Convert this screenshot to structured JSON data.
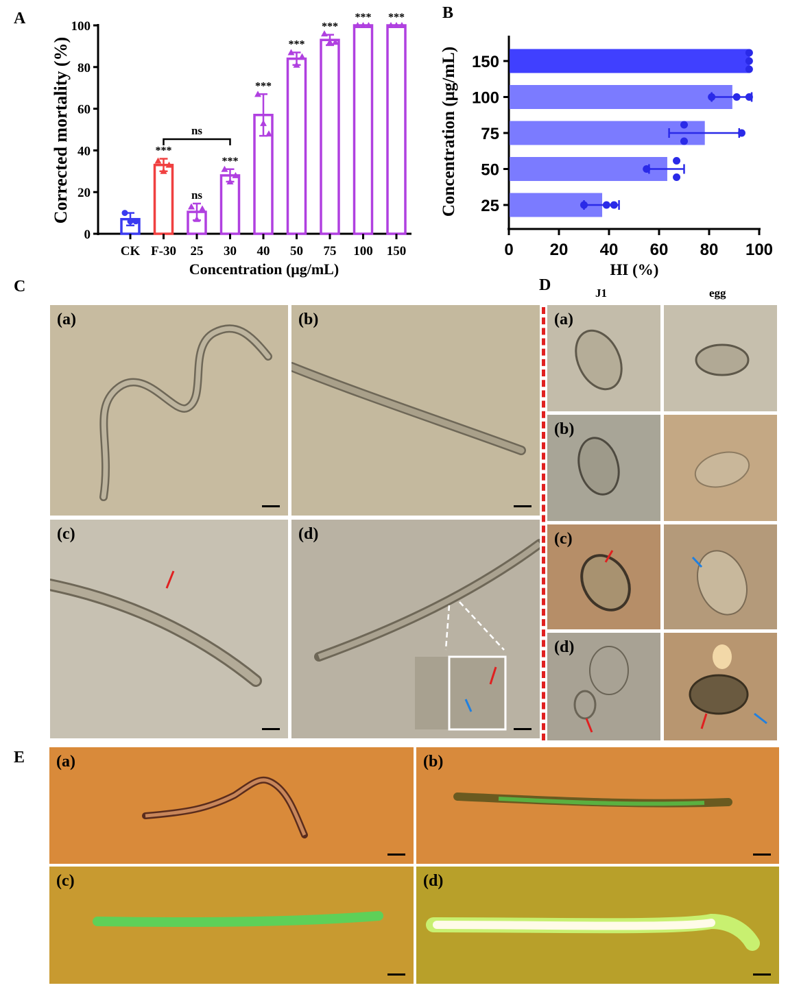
{
  "panel_labels": {
    "A": "A",
    "B": "B",
    "C": "C",
    "D": "D",
    "E": "E"
  },
  "chart_data": [
    {
      "type": "bar",
      "panel": "A",
      "title": "",
      "xlabel": "Concentration (μg/mL)",
      "ylabel": "Corrected mortality (%)",
      "ylim": [
        0,
        100
      ],
      "yticks": [
        "0",
        "20",
        "40",
        "60",
        "80",
        "100"
      ],
      "categories": [
        "CK",
        "F-30",
        "25",
        "30",
        "40",
        "50",
        "75",
        "100",
        "150"
      ],
      "values": [
        7,
        33,
        10.5,
        28,
        57,
        84,
        93,
        100,
        100
      ],
      "errors": [
        3,
        3,
        4,
        3,
        10,
        3,
        2.5,
        0,
        0
      ],
      "points": [
        [
          10,
          6,
          6
        ],
        [
          35,
          30,
          33
        ],
        [
          13,
          7,
          12
        ],
        [
          31,
          25,
          28
        ],
        [
          67,
          53,
          48
        ],
        [
          87,
          81,
          85
        ],
        [
          96,
          92,
          92
        ],
        [
          100,
          100,
          100
        ],
        [
          100,
          100,
          100
        ]
      ],
      "colors": [
        "#3b3bf0",
        "#f04040",
        "#b040e0",
        "#b040e0",
        "#b040e0",
        "#b040e0",
        "#b040e0",
        "#b040e0",
        "#b040e0"
      ],
      "significance": [
        "",
        "***",
        "ns",
        "***",
        "***",
        "***",
        "***",
        "***",
        "***"
      ],
      "bracket": {
        "from": "F-30",
        "to": "30",
        "label": "ns"
      }
    },
    {
      "type": "bar",
      "orientation": "horizontal",
      "panel": "B",
      "xlabel": "HI (%)",
      "ylabel": "Concentration (μg/mL)",
      "xlim": [
        0,
        100
      ],
      "xticks": [
        "0",
        "20",
        "40",
        "60",
        "80",
        "100"
      ],
      "categories": [
        "150",
        "100",
        "75",
        "50",
        "25"
      ],
      "values": [
        96,
        89,
        78,
        63,
        37
      ],
      "errors": [
        0,
        8,
        14,
        7,
        7
      ],
      "points": [
        [
          96,
          96,
          96
        ],
        [
          81,
          91,
          96
        ],
        [
          70,
          70,
          93
        ],
        [
          55,
          67,
          67
        ],
        [
          30,
          39,
          42
        ]
      ],
      "colors": [
        "#4040ff",
        "#7b7bff",
        "#7b7bff",
        "#7b7bff",
        "#7b7bff"
      ],
      "point_color": "#2a2ae8"
    }
  ],
  "panel_C": {
    "subs": [
      "(a)",
      "(b)",
      "(c)",
      "(d)"
    ]
  },
  "panel_D": {
    "col_headers": [
      "J1",
      "egg"
    ],
    "subs": [
      "(a)",
      "(b)",
      "(c)",
      "(d)"
    ]
  },
  "panel_E": {
    "subs": [
      "(a)",
      "(b)",
      "(c)",
      "(d)"
    ]
  }
}
